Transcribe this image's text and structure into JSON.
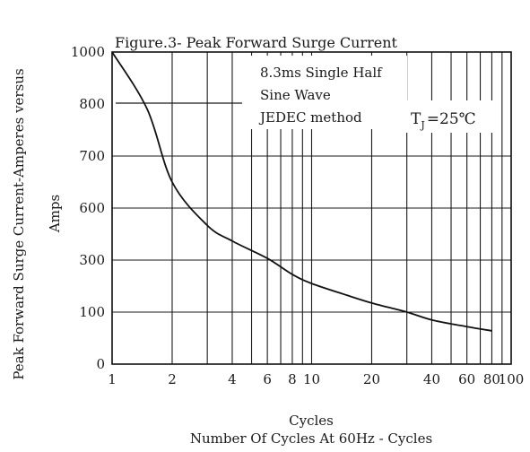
{
  "chart_data": {
    "type": "line",
    "title": "Figure.3- Peak Forward Surge Current",
    "ylabel_line1": "Peak Forward Surge Current-Amperes versus",
    "ylabel_line2": "Amps",
    "xlabel_line1": "Cycles",
    "xlabel_line2": "Number Of Cycles  At 60Hz - Cycles",
    "x_scale": "log",
    "xlim": [
      1,
      100
    ],
    "x_tick_labels": [
      "1",
      "2",
      "4",
      "6",
      "8",
      "10",
      "20",
      "40",
      "60",
      "80",
      "100"
    ],
    "x_tick_values": [
      1,
      2,
      4,
      6,
      8,
      10,
      20,
      40,
      60,
      80,
      100
    ],
    "x_gridlines": [
      1,
      2,
      3,
      4,
      5,
      6,
      7,
      8,
      9,
      10,
      20,
      30,
      40,
      50,
      60,
      70,
      80,
      90,
      100
    ],
    "y_tick_labels": [
      "0",
      "100",
      "300",
      "600",
      "700",
      "800",
      "1000"
    ],
    "grid": true,
    "annotations": {
      "note_line1": "8.3ms Single Half",
      "note_line2": "Sine Wave",
      "note_line3": "JEDEC method",
      "temp_main": "T",
      "temp_sub": "J",
      "temp_value": "=25℃"
    },
    "series": [
      {
        "points": [
          {
            "x": 1,
            "y": 1000
          },
          {
            "x": 1.5,
            "y": 790
          },
          {
            "x": 2,
            "y": 650
          },
          {
            "x": 3,
            "y": 500
          },
          {
            "x": 4,
            "y": 410
          },
          {
            "x": 6,
            "y": 310
          },
          {
            "x": 8,
            "y": 245
          },
          {
            "x": 10,
            "y": 210
          },
          {
            "x": 15,
            "y": 165
          },
          {
            "x": 20,
            "y": 135
          },
          {
            "x": 30,
            "y": 100
          },
          {
            "x": 40,
            "y": 85
          },
          {
            "x": 60,
            "y": 72
          },
          {
            "x": 80,
            "y": 64
          }
        ]
      }
    ]
  }
}
